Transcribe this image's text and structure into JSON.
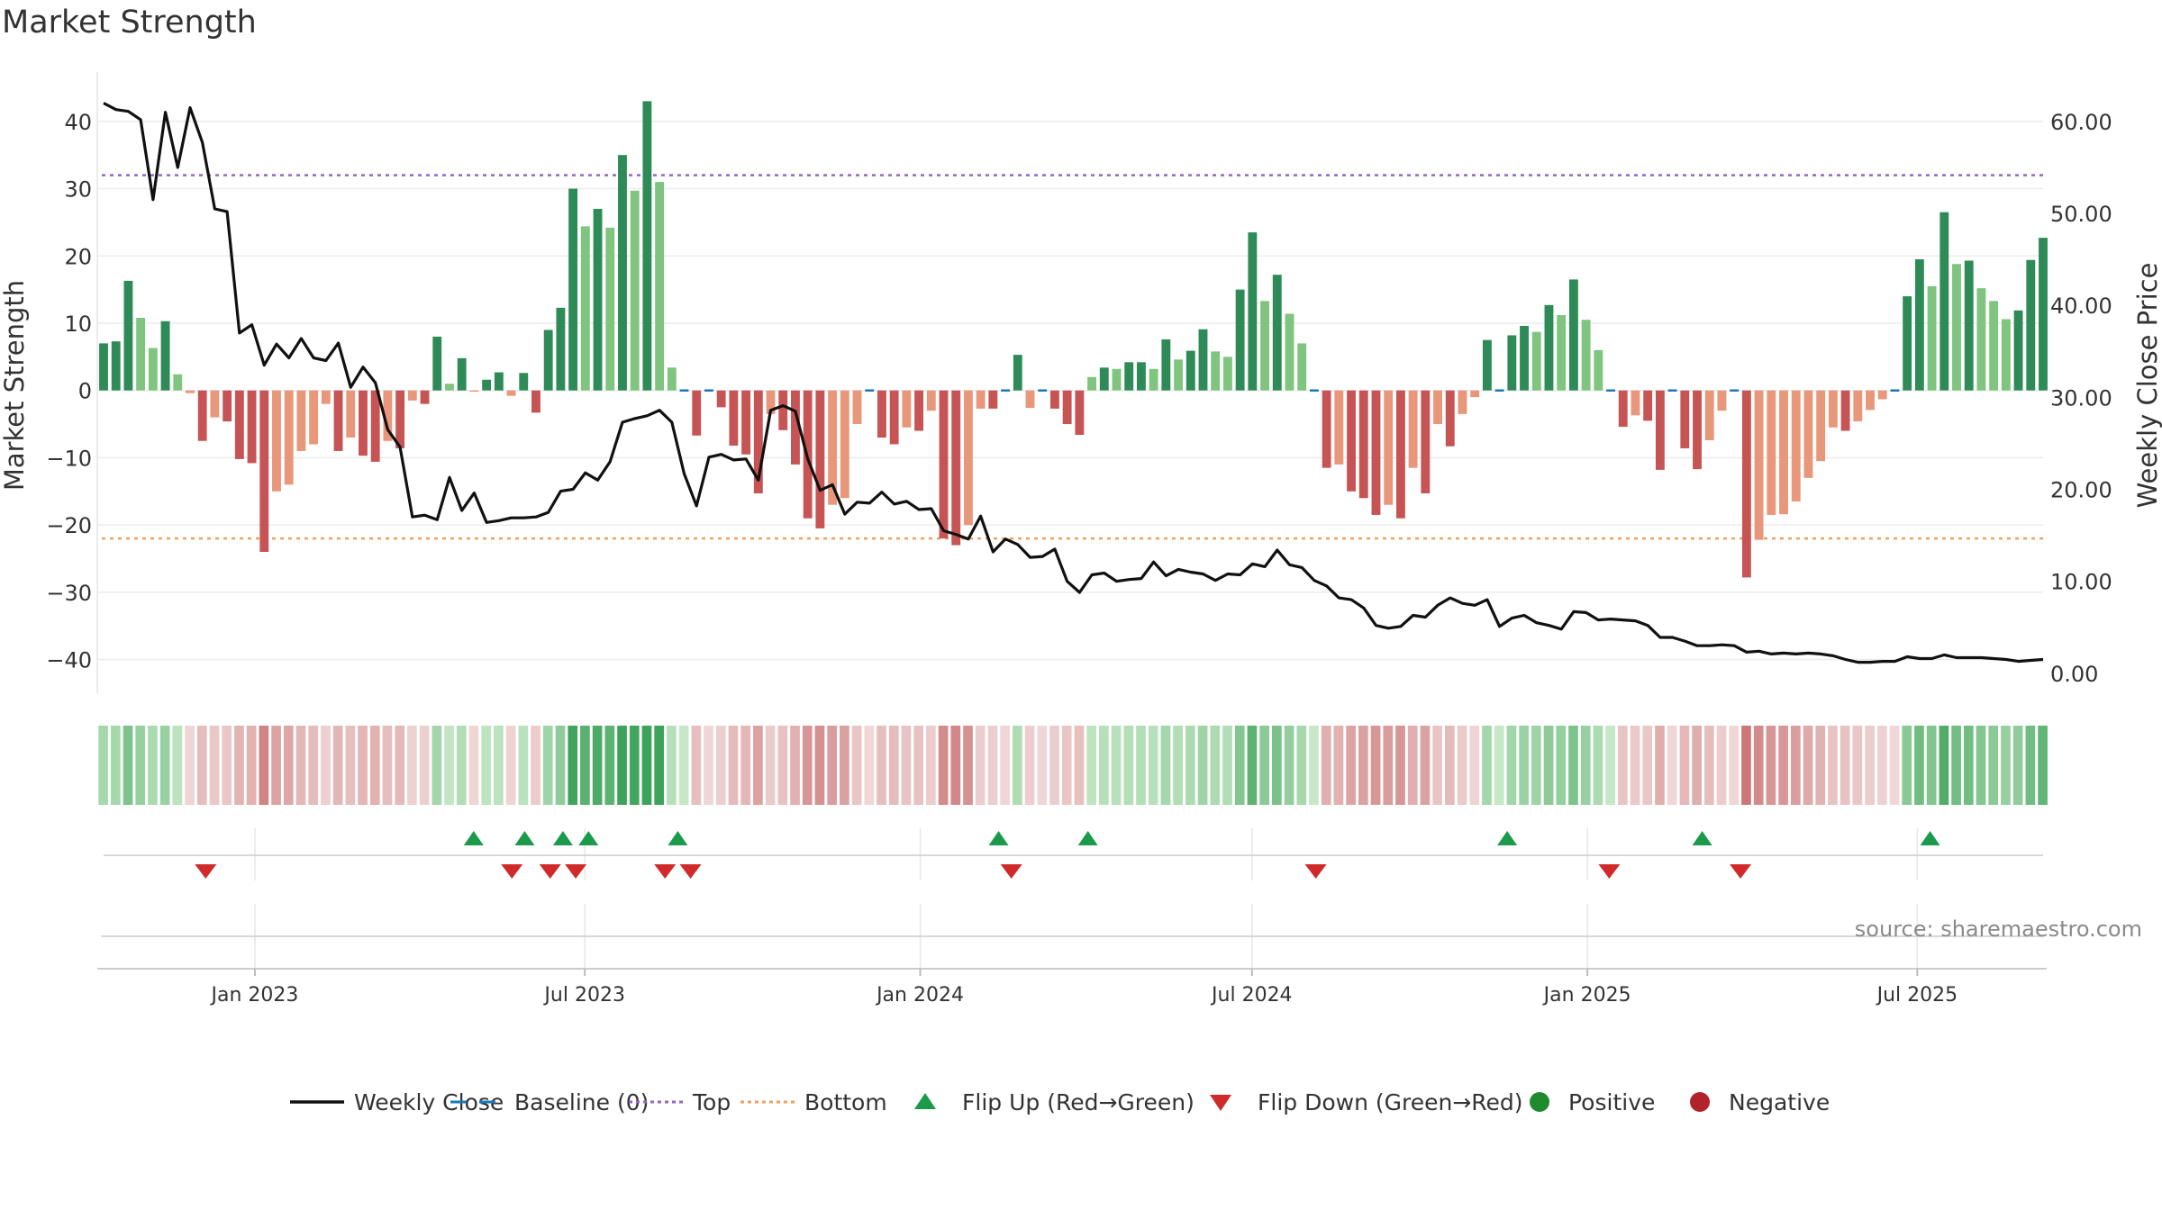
{
  "chart_data": {
    "type": "bar",
    "title": "Market Strength",
    "ylabel_left": "Market Strength",
    "ylabel_right": "Weekly Close Price",
    "source": "source: sharemaestro.com",
    "y_left": {
      "range": [
        -43,
        46
      ],
      "ticks": [
        40,
        30,
        20,
        10,
        0,
        -10,
        -20,
        -30,
        -40
      ],
      "tick_labels": [
        "40",
        "30",
        "20",
        "10",
        "0",
        "−10",
        "−20",
        "−30",
        "−40"
      ]
    },
    "y_right": {
      "range": [
        -0.7,
        64.4
      ],
      "ticks": [
        60,
        50,
        40,
        30,
        20,
        10,
        0
      ],
      "tick_labels": [
        "60.00",
        "50.00",
        "40.00",
        "30.00",
        "20.00",
        "10.00",
        "0.00"
      ]
    },
    "x_axis": {
      "start": "2022-10-10",
      "end": "2025-09-08",
      "tick_labels": [
        "Jan 2023",
        "Jul 2023",
        "Jan 2024",
        "Jul 2024",
        "Jan 2025",
        "Jul 2025"
      ],
      "tick_dates": [
        "2023-01-01",
        "2023-07-01",
        "2024-01-01",
        "2024-07-01",
        "2025-01-01",
        "2025-07-01"
      ]
    },
    "top_line": 32,
    "bottom_line": -22,
    "strength": [
      7,
      7.3,
      16.3,
      10.8,
      6.3,
      10.3,
      2.4,
      -0.4,
      -7.5,
      -4,
      -4.6,
      -10.2,
      -10.8,
      -24,
      -15,
      -14,
      -9,
      -8,
      -2,
      -9,
      -7,
      -9.7,
      -10.6,
      -7.5,
      -8.6,
      -1.5,
      -2,
      8,
      1,
      4.8,
      -0.2,
      1.6,
      2.7,
      -0.8,
      2.6,
      -3.3,
      9,
      12.3,
      30,
      24.4,
      27,
      24.2,
      35,
      29.7,
      43,
      31,
      3.4,
      0,
      -6.7,
      0,
      -2.5,
      -8.2,
      -9.5,
      -15.3,
      -3.5,
      -5.9,
      -11,
      -19,
      -20.5,
      -17,
      -16,
      -5,
      0,
      -7,
      -8,
      -5.5,
      -6,
      -3,
      -22,
      -23,
      -20,
      -2.7,
      -2.7,
      0,
      5.3,
      -2.6,
      0,
      -2.7,
      -5,
      -6.6,
      2,
      3.4,
      3.2,
      4.2,
      4.2,
      3.2,
      7.6,
      4.6,
      5.9,
      9.1,
      5.8,
      5,
      15,
      23.5,
      13.3,
      17.2,
      11.4,
      7,
      0,
      -11.5,
      -11,
      -15,
      -16,
      -18.5,
      -17,
      -19,
      -11.5,
      -15.3,
      -5,
      -8.3,
      -3.5,
      -1,
      7.5,
      0,
      8.2,
      9.6,
      8.7,
      12.7,
      11.2,
      16.5,
      10.5,
      6,
      0,
      -5.4,
      -3.7,
      -4.5,
      -11.8,
      0,
      -8.6,
      -11.7,
      -7.4,
      -3,
      0,
      -27.8,
      -22.2,
      -18.5,
      -18.4,
      -16.5,
      -13,
      -10.5,
      -5.5,
      -6,
      -4.6,
      -2.9,
      -1.3,
      0,
      14,
      19.5,
      15.5,
      26.5,
      18.8,
      19.3,
      15.2,
      13.3,
      10.6,
      11.9,
      19.4,
      22.7
    ],
    "weekly_close": [
      62,
      61.3,
      61.1,
      60.2,
      51.5,
      61,
      55,
      61.5,
      57.7,
      50.5,
      50.2,
      37,
      37.9,
      33.5,
      35.8,
      34.3,
      36.4,
      34.3,
      34,
      35.9,
      31.1,
      33.3,
      31.6,
      26.5,
      24.6,
      17,
      17.2,
      16.7,
      21.3,
      17.7,
      19.6,
      16.4,
      16.6,
      16.9,
      16.9,
      17,
      17.5,
      19.8,
      20,
      21.8,
      21,
      23,
      27.3,
      27.7,
      28,
      28.6,
      27.3,
      21.7,
      18.2,
      23.5,
      23.8,
      23.2,
      23.3,
      21,
      28.6,
      29.1,
      28.5,
      23.3,
      19.9,
      20.5,
      17.3,
      18.6,
      18.5,
      19.7,
      18.4,
      18.7,
      17.8,
      17.9,
      15.5,
      15.1,
      14.6,
      17.1,
      13.2,
      14.6,
      14,
      12.6,
      12.7,
      13.5,
      10,
      8.8,
      10.7,
      10.9,
      10,
      10.2,
      10.3,
      12.1,
      10.6,
      11.3,
      11,
      10.8,
      10.1,
      10.8,
      10.7,
      11.9,
      11.6,
      13.4,
      11.8,
      11.5,
      10.1,
      9.5,
      8.2,
      8,
      7.1,
      5.2,
      4.9,
      5.1,
      6.3,
      6.1,
      7.4,
      8.2,
      7.6,
      7.4,
      8,
      5.1,
      6,
      6.3,
      5.5,
      5.2,
      4.8,
      6.7,
      6.6,
      5.8,
      5.9,
      5.8,
      5.7,
      5.2,
      3.9,
      3.9,
      3.5,
      3,
      3,
      3.1,
      3,
      2.3,
      2.4,
      2.1,
      2.2,
      2.1,
      2.2,
      2.1,
      1.9,
      1.5,
      1.2,
      1.2,
      1.3,
      1.3,
      1.8,
      1.6,
      1.6,
      2,
      1.7,
      1.7,
      1.7,
      1.6,
      1.5,
      1.3,
      1.4,
      1.5
    ],
    "flip_up_dates": [
      "2023-05-01",
      "2023-05-29",
      "2023-06-19",
      "2023-07-03",
      "2023-08-21",
      "2024-02-13",
      "2024-04-02",
      "2024-11-18",
      "2025-03-05",
      "2025-07-08"
    ],
    "flip_down_dates": [
      "2022-12-05",
      "2023-05-22",
      "2023-06-12",
      "2023-06-26",
      "2023-08-14",
      "2023-08-28",
      "2024-02-20",
      "2024-08-05",
      "2025-01-13",
      "2025-03-26"
    ],
    "legend": [
      {
        "label": "Weekly Close",
        "kind": "line"
      },
      {
        "label": "Baseline (0)",
        "kind": "dash"
      },
      {
        "label": "Top",
        "kind": "dotted-purple"
      },
      {
        "label": "Bottom",
        "kind": "dotted-orange"
      },
      {
        "label": "Flip Up (Red→Green)",
        "kind": "triangle-up"
      },
      {
        "label": "Flip Down (Green→Red)",
        "kind": "triangle-down"
      },
      {
        "label": "Positive",
        "kind": "dot-green"
      },
      {
        "label": "Negative",
        "kind": "dot-red"
      }
    ],
    "legend_placement": "bottom",
    "grid": true
  },
  "colors": {
    "pos_strong": "#2e8b57",
    "pos_light": "#7fc47f",
    "neg_strong": "#c75454",
    "neg_light": "#e8977a",
    "line": "#111111",
    "baseline": "#1f77b4",
    "top": "#9467bd",
    "bottom": "#f0a060",
    "flip_up": "#1a9a4a",
    "flip_down": "#d02a2a",
    "positive_dot": "#1f8a2e",
    "negative_dot": "#b0232a"
  }
}
